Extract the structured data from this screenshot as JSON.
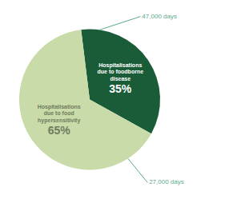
{
  "chart_data": {
    "type": "pie",
    "categories": [
      "Hospitalisations\ndue to foodborne\ndisease",
      "Hospitalisations\ndue to food\nhypersensitivity"
    ],
    "values": [
      35,
      65
    ],
    "value_labels": [
      "35%",
      "65%"
    ],
    "colors": [
      "#1a5c38",
      "#c8dba8"
    ],
    "data_labels": true,
    "annotations": [
      {
        "text": "47,000 days",
        "color": "#5aaa8a"
      },
      {
        "text": "27,000 days",
        "color": "#5aaa8a"
      }
    ]
  }
}
